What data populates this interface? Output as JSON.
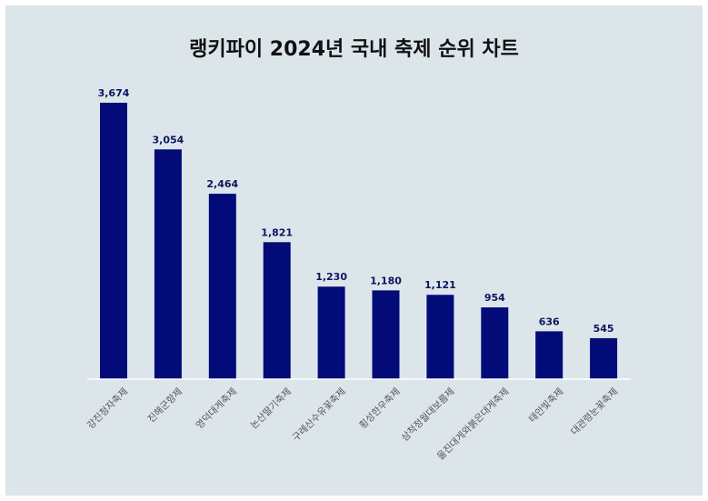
{
  "chart_data": {
    "type": "bar",
    "title": "랭키파이 2024년 국내 축제 순위 차트",
    "xlabel": "",
    "ylabel": "",
    "categories": [
      "강진청자축제",
      "진해군항제",
      "영덕대게축제",
      "논산딸기축제",
      "구례산수유꽃축제",
      "횡성한우축제",
      "삼척정월대보름제",
      "울진대게와붉은대게축제",
      "태안빛축제",
      "대관령눈꽃축제"
    ],
    "values": [
      3674,
      3054,
      2464,
      1821,
      1230,
      1180,
      1121,
      954,
      636,
      545
    ],
    "value_labels": [
      "3,674",
      "3,054",
      "2,464",
      "1,821",
      "1,230",
      "1,180",
      "1,121",
      "954",
      "636",
      "545"
    ],
    "ylim": [
      0,
      3674
    ],
    "grid": false,
    "legend": "none",
    "colors": {
      "bar": "#020b78",
      "label": "#0a1560",
      "tick": "#555555",
      "background": "#dce6ea",
      "baseline": "#ffffff"
    }
  }
}
